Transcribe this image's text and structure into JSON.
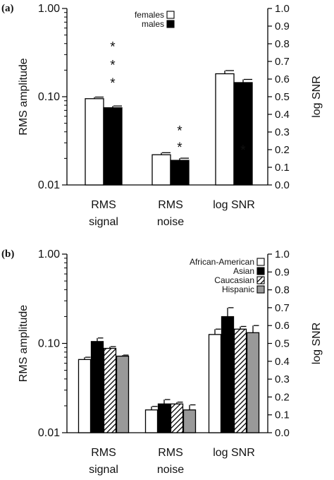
{
  "chart_data": [
    {
      "type": "bar",
      "panel_label": "(a)",
      "categories": [
        "RMS\nsignal",
        "RMS\nnoise",
        "log SNR"
      ],
      "ylabel": "RMS amplitude",
      "y2label": "log SNR",
      "ylim": [
        0.01,
        1.0
      ],
      "yscale": "log",
      "yticks": [
        "0.01",
        "0.10",
        "1.00"
      ],
      "y2lim": [
        0.0,
        1.0
      ],
      "y2ticks": [
        "0.0",
        "0.1",
        "0.2",
        "0.3",
        "0.4",
        "0.5",
        "0.6",
        "0.7",
        "0.8",
        "0.9",
        "1.0"
      ],
      "legend_position": "top-center",
      "series": [
        {
          "name": "females",
          "fill": "#ffffff",
          "pattern": "solid",
          "values": [
            0.095,
            0.022,
            0.63
          ],
          "errors": [
            0.004,
            0.0012,
            0.018
          ]
        },
        {
          "name": "males",
          "fill": "#000000",
          "pattern": "solid",
          "values": [
            0.075,
            0.019,
            0.58
          ],
          "errors": [
            0.0035,
            0.0011,
            0.018
          ]
        }
      ],
      "annotations": [
        {
          "text": "*",
          "category": 0,
          "level": 0.4
        },
        {
          "text": "*",
          "category": 0,
          "level": 0.25
        },
        {
          "text": "*",
          "category": 0,
          "level": 0.155
        },
        {
          "text": "*",
          "category": 1,
          "level": 0.045
        },
        {
          "text": "*",
          "category": 1,
          "level": 0.029
        },
        {
          "text": "*",
          "category": 2,
          "level": 0.216
        }
      ]
    },
    {
      "type": "bar",
      "panel_label": "(b)",
      "categories": [
        "RMS\nsignal",
        "RMS\nnoise",
        "log SNR"
      ],
      "ylabel": "RMS amplitude",
      "y2label": "log SNR",
      "ylim": [
        0.01,
        1.0
      ],
      "yscale": "log",
      "yticks": [
        "0.01",
        "0.10",
        "1.00"
      ],
      "y2lim": [
        0.0,
        1.0
      ],
      "y2ticks": [
        "0.0",
        "0.1",
        "0.2",
        "0.3",
        "0.4",
        "0.5",
        "0.6",
        "0.7",
        "0.8",
        "0.9",
        "1.0"
      ],
      "legend_position": "top-center",
      "series": [
        {
          "name": "African-American",
          "fill": "#ffffff",
          "pattern": "solid",
          "values": [
            0.066,
            0.018,
            0.55
          ],
          "errors": [
            0.004,
            0.0017,
            0.03
          ]
        },
        {
          "name": "Asian",
          "fill": "#000000",
          "pattern": "solid",
          "values": [
            0.105,
            0.021,
            0.65
          ],
          "errors": [
            0.01,
            0.0025,
            0.05
          ]
        },
        {
          "name": "Caucasian",
          "fill": "#ffffff",
          "pattern": "hatch",
          "values": [
            0.088,
            0.021,
            0.58
          ],
          "errors": [
            0.004,
            0.001,
            0.015
          ]
        },
        {
          "name": "Hispanic",
          "fill": "#999999",
          "pattern": "solid",
          "values": [
            0.072,
            0.018,
            0.56
          ],
          "errors": [
            0.002,
            0.0025,
            0.04
          ]
        }
      ],
      "annotations": []
    }
  ]
}
